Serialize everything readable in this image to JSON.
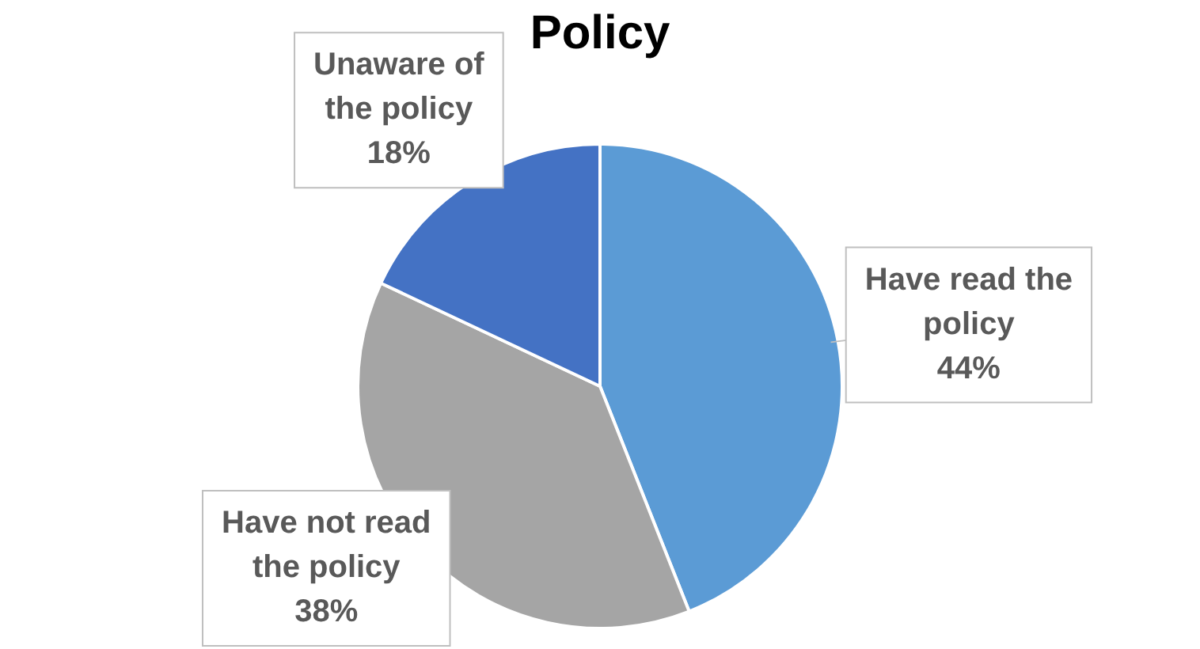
{
  "chart_data": {
    "type": "pie",
    "title": "Policy",
    "categories": [
      "Have read the policy",
      "Have not read the policy",
      "Unaware of the policy"
    ],
    "values": [
      44,
      38,
      18
    ],
    "colors": [
      "#5b9bd5",
      "#a5a5a5",
      "#4472c4"
    ],
    "value_labels": [
      "44%",
      "38%",
      "18%"
    ],
    "legend": false
  }
}
